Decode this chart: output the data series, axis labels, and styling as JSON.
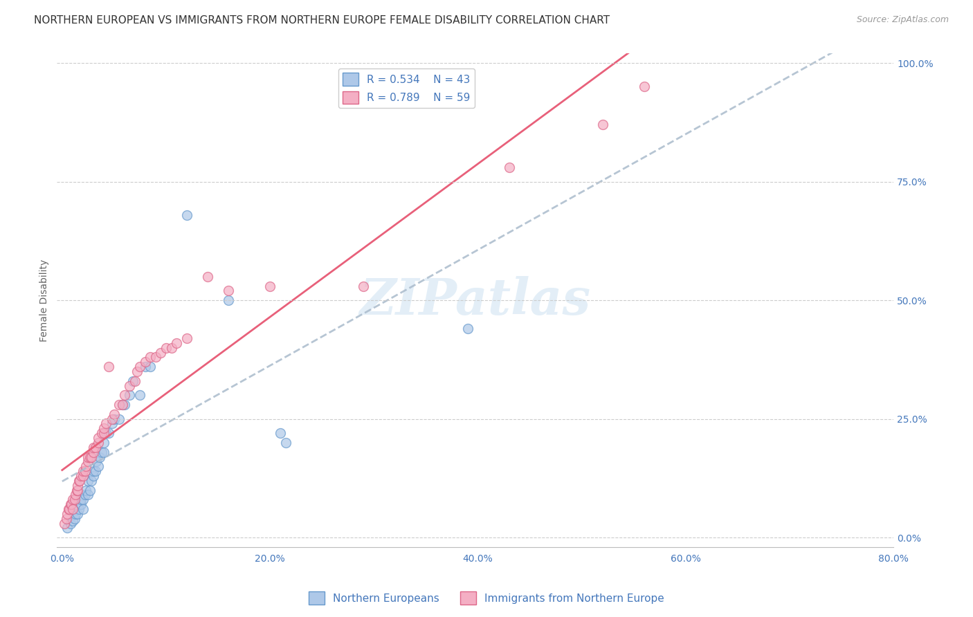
{
  "title": "NORTHERN EUROPEAN VS IMMIGRANTS FROM NORTHERN EUROPE FEMALE DISABILITY CORRELATION CHART",
  "source": "Source: ZipAtlas.com",
  "ylabel": "Female Disability",
  "x_ticks": [
    "0.0%",
    "20.0%",
    "40.0%",
    "60.0%",
    "80.0%"
  ],
  "x_tick_vals": [
    0.0,
    0.2,
    0.4,
    0.6,
    0.8
  ],
  "y_ticks": [
    "0.0%",
    "25.0%",
    "50.0%",
    "75.0%",
    "100.0%"
  ],
  "y_tick_vals": [
    0.0,
    0.25,
    0.5,
    0.75,
    1.0
  ],
  "xlim": [
    -0.005,
    0.8
  ],
  "ylim": [
    -0.02,
    1.02
  ],
  "blue_R": 0.534,
  "blue_N": 43,
  "pink_R": 0.789,
  "pink_N": 59,
  "blue_fill_color": "#aec8e8",
  "pink_fill_color": "#f4afc4",
  "blue_edge_color": "#6699cc",
  "pink_edge_color": "#dd6688",
  "blue_line_color": "#7ab0d8",
  "pink_line_color": "#e8607a",
  "tick_label_color": "#4477bb",
  "blue_scatter": [
    [
      0.005,
      0.02
    ],
    [
      0.008,
      0.03
    ],
    [
      0.01,
      0.035
    ],
    [
      0.012,
      0.04
    ],
    [
      0.013,
      0.05
    ],
    [
      0.015,
      0.05
    ],
    [
      0.016,
      0.06
    ],
    [
      0.018,
      0.07
    ],
    [
      0.018,
      0.08
    ],
    [
      0.02,
      0.06
    ],
    [
      0.02,
      0.08
    ],
    [
      0.022,
      0.09
    ],
    [
      0.023,
      0.1
    ],
    [
      0.025,
      0.09
    ],
    [
      0.025,
      0.12
    ],
    [
      0.027,
      0.1
    ],
    [
      0.028,
      0.12
    ],
    [
      0.03,
      0.13
    ],
    [
      0.03,
      0.14
    ],
    [
      0.032,
      0.14
    ],
    [
      0.033,
      0.16
    ],
    [
      0.035,
      0.15
    ],
    [
      0.036,
      0.17
    ],
    [
      0.038,
      0.18
    ],
    [
      0.04,
      0.18
    ],
    [
      0.04,
      0.2
    ],
    [
      0.042,
      0.22
    ],
    [
      0.045,
      0.22
    ],
    [
      0.048,
      0.24
    ],
    [
      0.05,
      0.25
    ],
    [
      0.055,
      0.25
    ],
    [
      0.058,
      0.28
    ],
    [
      0.06,
      0.28
    ],
    [
      0.065,
      0.3
    ],
    [
      0.068,
      0.33
    ],
    [
      0.075,
      0.3
    ],
    [
      0.08,
      0.36
    ],
    [
      0.085,
      0.36
    ],
    [
      0.12,
      0.68
    ],
    [
      0.16,
      0.5
    ],
    [
      0.21,
      0.22
    ],
    [
      0.215,
      0.2
    ],
    [
      0.39,
      0.44
    ]
  ],
  "pink_scatter": [
    [
      0.002,
      0.03
    ],
    [
      0.004,
      0.04
    ],
    [
      0.005,
      0.05
    ],
    [
      0.006,
      0.06
    ],
    [
      0.007,
      0.06
    ],
    [
      0.008,
      0.07
    ],
    [
      0.009,
      0.07
    ],
    [
      0.01,
      0.08
    ],
    [
      0.01,
      0.06
    ],
    [
      0.012,
      0.08
    ],
    [
      0.013,
      0.09
    ],
    [
      0.014,
      0.1
    ],
    [
      0.015,
      0.1
    ],
    [
      0.015,
      0.11
    ],
    [
      0.016,
      0.12
    ],
    [
      0.017,
      0.12
    ],
    [
      0.018,
      0.13
    ],
    [
      0.02,
      0.13
    ],
    [
      0.02,
      0.14
    ],
    [
      0.022,
      0.14
    ],
    [
      0.023,
      0.15
    ],
    [
      0.025,
      0.16
    ],
    [
      0.025,
      0.17
    ],
    [
      0.027,
      0.17
    ],
    [
      0.028,
      0.17
    ],
    [
      0.03,
      0.18
    ],
    [
      0.03,
      0.19
    ],
    [
      0.032,
      0.19
    ],
    [
      0.035,
      0.2
    ],
    [
      0.035,
      0.21
    ],
    [
      0.038,
      0.22
    ],
    [
      0.04,
      0.22
    ],
    [
      0.04,
      0.23
    ],
    [
      0.042,
      0.24
    ],
    [
      0.045,
      0.36
    ],
    [
      0.048,
      0.25
    ],
    [
      0.05,
      0.26
    ],
    [
      0.055,
      0.28
    ],
    [
      0.058,
      0.28
    ],
    [
      0.06,
      0.3
    ],
    [
      0.065,
      0.32
    ],
    [
      0.07,
      0.33
    ],
    [
      0.072,
      0.35
    ],
    [
      0.075,
      0.36
    ],
    [
      0.08,
      0.37
    ],
    [
      0.085,
      0.38
    ],
    [
      0.09,
      0.38
    ],
    [
      0.095,
      0.39
    ],
    [
      0.1,
      0.4
    ],
    [
      0.105,
      0.4
    ],
    [
      0.11,
      0.41
    ],
    [
      0.12,
      0.42
    ],
    [
      0.14,
      0.55
    ],
    [
      0.16,
      0.52
    ],
    [
      0.2,
      0.53
    ],
    [
      0.29,
      0.53
    ],
    [
      0.43,
      0.78
    ],
    [
      0.52,
      0.87
    ],
    [
      0.56,
      0.95
    ]
  ],
  "watermark": "ZIPatlas",
  "background_color": "#ffffff",
  "grid_color": "#cccccc",
  "title_fontsize": 11,
  "axis_label_fontsize": 10,
  "tick_fontsize": 10,
  "legend_fontsize": 11,
  "source_fontsize": 9
}
